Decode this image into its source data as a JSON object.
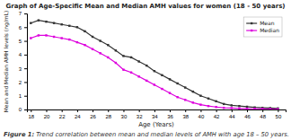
{
  "chart_data": {
    "type": "line",
    "title": "Graph of Age-Specific Mean and Median AMH values for women (18 - 50 years)",
    "x_label": "Age (Years)",
    "y_label": "Mean and Median AMH levels (ng/mL)",
    "annotations": [
      "Figure 1:",
      "Trend correlation between mean and median levels of AMH with age 18 – 50 years."
    ],
    "x": [
      18,
      19,
      20,
      21,
      22,
      23,
      24,
      25,
      26,
      27,
      28,
      29,
      30,
      31,
      32,
      33,
      34,
      35,
      36,
      37,
      38,
      39,
      40,
      41,
      42,
      43,
      44,
      45,
      46,
      47,
      48,
      49,
      50
    ],
    "series": [
      {
        "name": "Mean",
        "color": "#333333",
        "marker": "square",
        "line_style": "solid",
        "values": [
          6.3,
          6.5,
          6.4,
          6.3,
          6.2,
          6.1,
          6.0,
          5.7,
          5.3,
          5.0,
          4.7,
          4.3,
          3.9,
          3.8,
          3.5,
          3.2,
          2.8,
          2.5,
          2.2,
          1.9,
          1.6,
          1.3,
          1.0,
          0.8,
          0.6,
          0.4,
          0.3,
          0.25,
          0.2,
          0.15,
          0.12,
          0.1,
          0.08
        ]
      },
      {
        "name": "Median",
        "color": "#dd00dd",
        "marker": "square",
        "line_style": "solid",
        "values": [
          5.2,
          5.4,
          5.4,
          5.3,
          5.2,
          5.1,
          4.9,
          4.7,
          4.4,
          4.1,
          3.8,
          3.4,
          2.9,
          2.7,
          2.4,
          2.1,
          1.8,
          1.5,
          1.2,
          0.9,
          0.7,
          0.5,
          0.35,
          0.25,
          0.18,
          0.12,
          0.1,
          0.08,
          0.06,
          0.05,
          0.04,
          0.03,
          0.02
        ]
      }
    ],
    "xlim": [
      17.5,
      51
    ],
    "xticks": [
      18,
      20,
      22,
      24,
      26,
      28,
      30,
      32,
      34,
      36,
      38,
      40,
      42,
      44,
      46,
      48,
      50
    ],
    "ylim": [
      0,
      7
    ],
    "yticks": [
      0,
      1,
      2,
      3,
      4,
      5,
      6,
      7
    ],
    "grid": false,
    "legend": "upper right"
  }
}
